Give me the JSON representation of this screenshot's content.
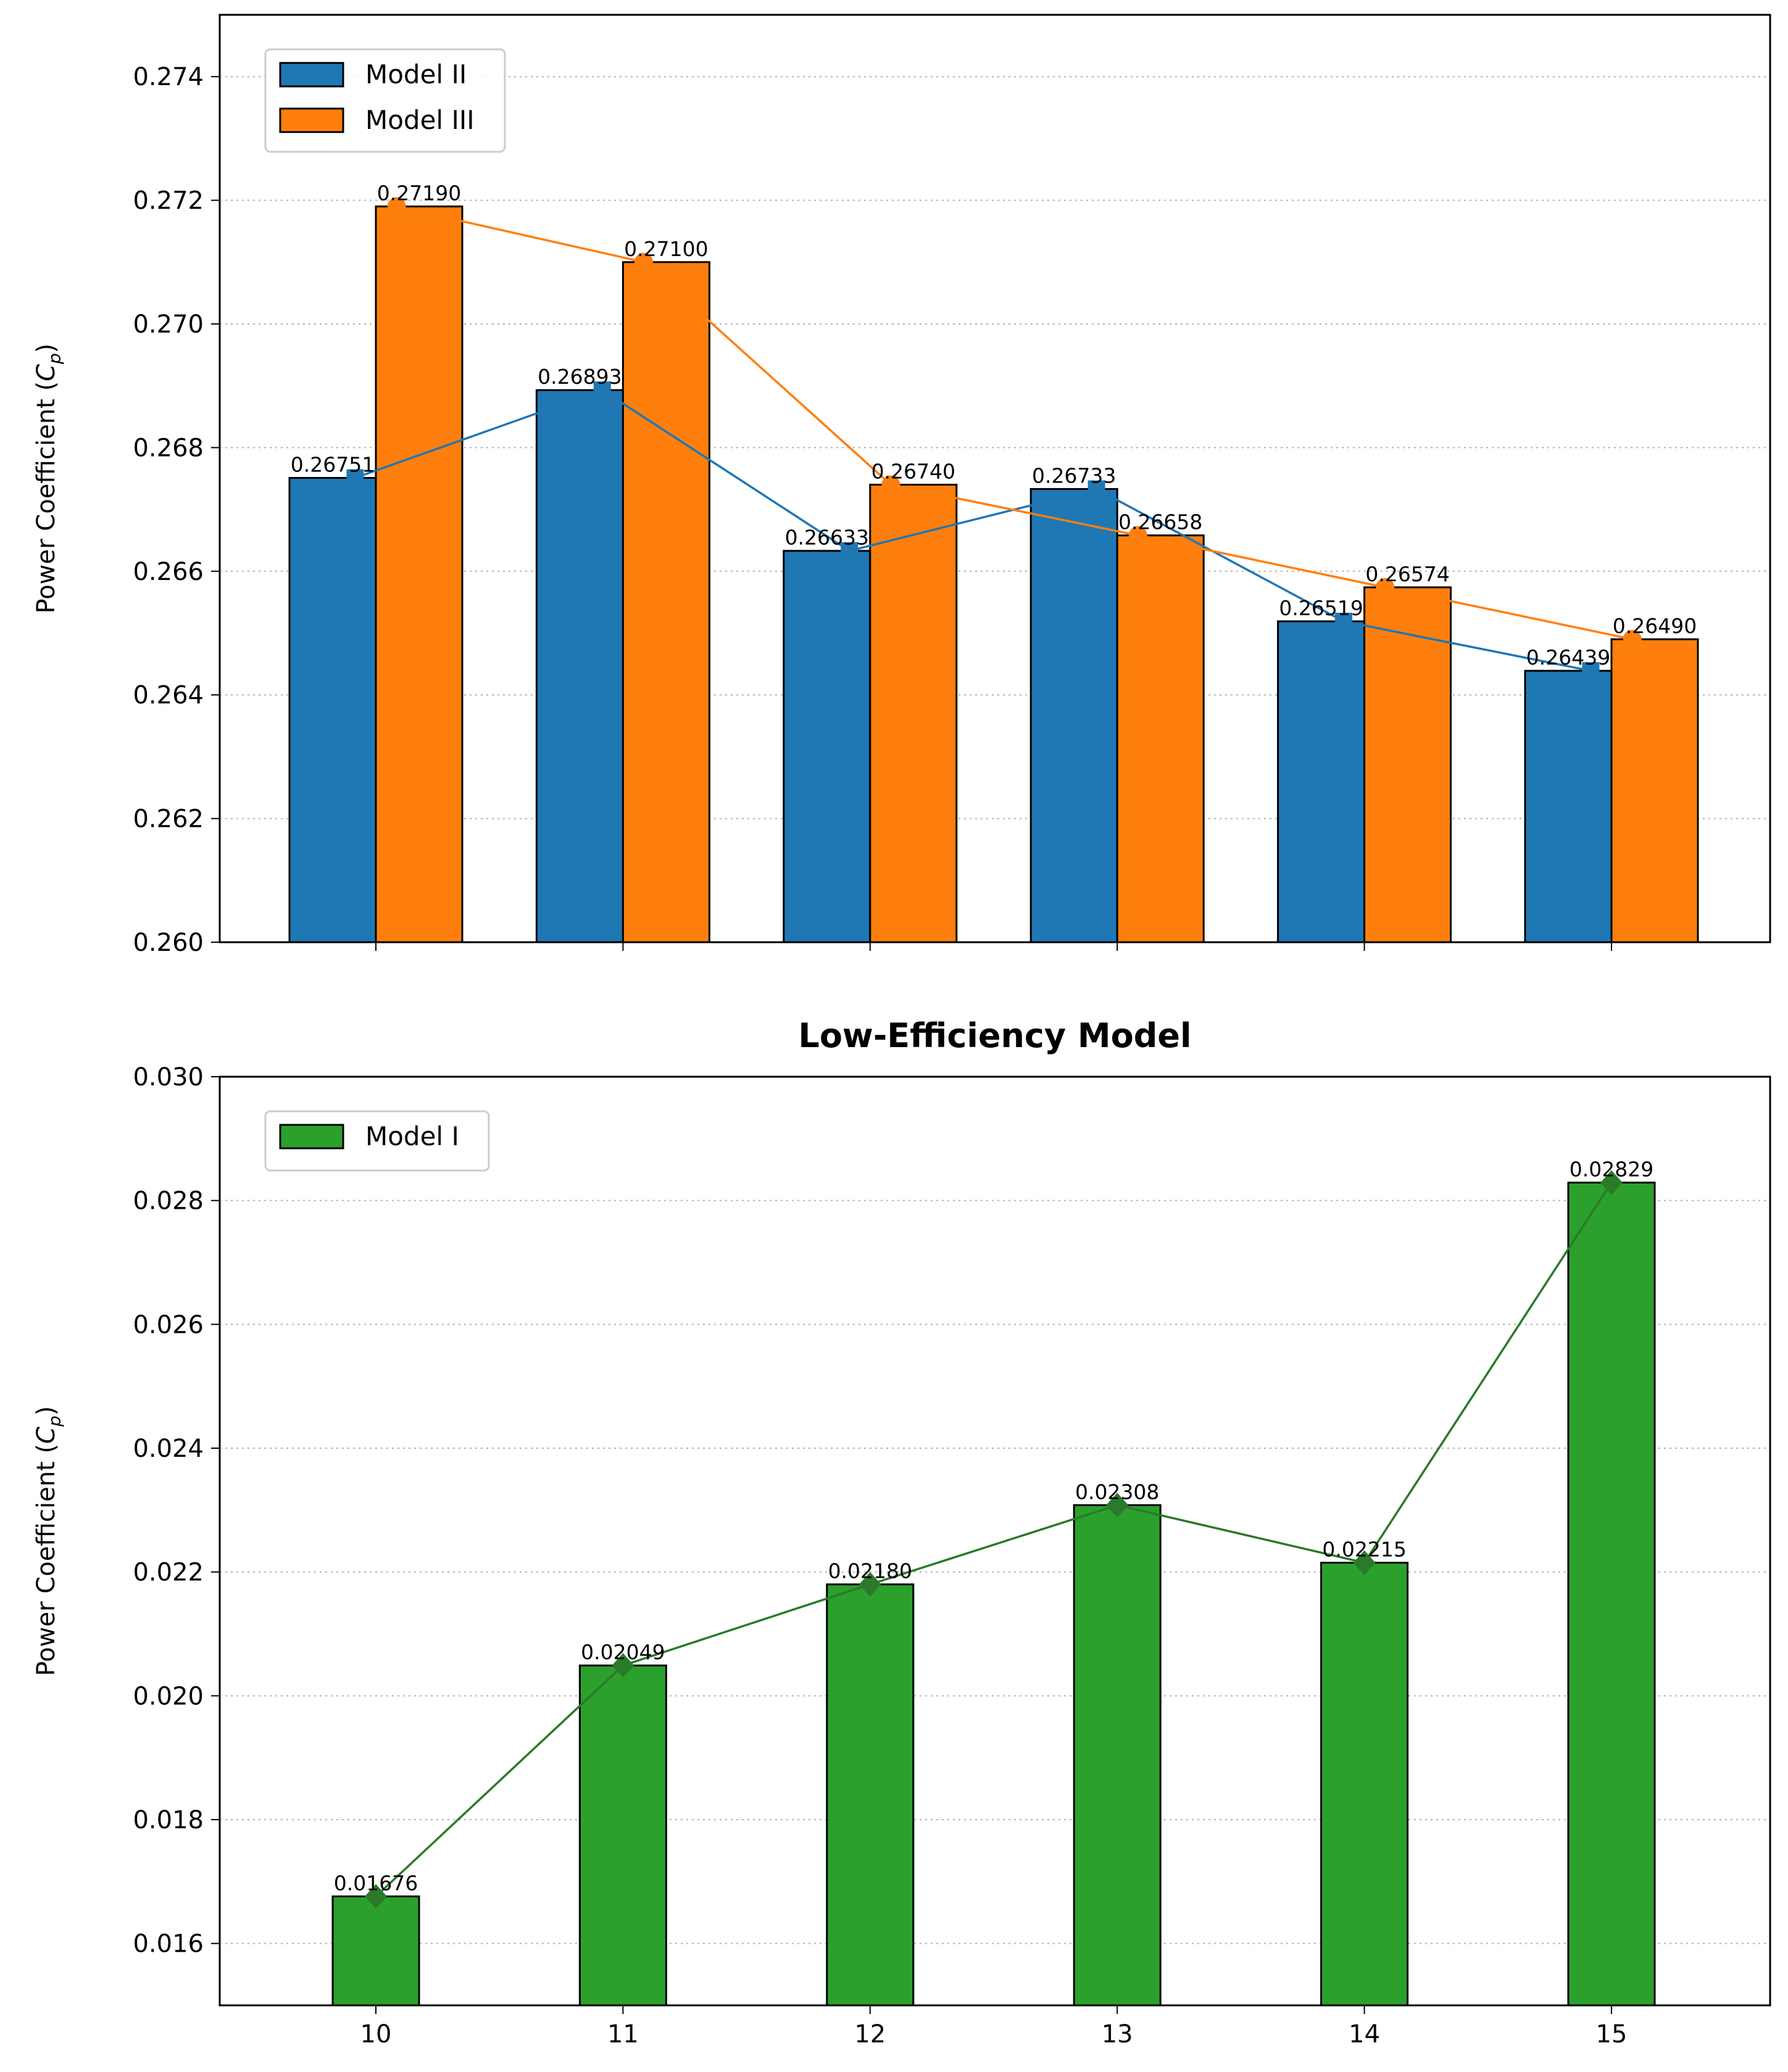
{
  "chart_data": [
    {
      "type": "bar",
      "title": "",
      "xlabel": "",
      "ylabel": "Power Coefficient (",
      "ylabel_symbol": "C",
      "ylabel_sub": "p",
      "ylabel_close": ")",
      "categories": [
        "10",
        "11",
        "12",
        "13",
        "14",
        "15"
      ],
      "ylim": [
        0.26,
        0.275
      ],
      "yticks": [
        "0.260",
        "0.262",
        "0.264",
        "0.266",
        "0.268",
        "0.270",
        "0.272",
        "0.274"
      ],
      "grid": "y-dotted",
      "legend": "top-left",
      "series": [
        {
          "name": "Model II",
          "color": "#1f77b4",
          "line_color": "#1f77b4",
          "marker": "square",
          "values": [
            0.26751,
            0.26893,
            0.26633,
            0.26733,
            0.26519,
            0.26439
          ],
          "labels": [
            "0.26751",
            "0.26893",
            "0.26633",
            "0.26733",
            "0.26519",
            "0.26439"
          ]
        },
        {
          "name": "Model III",
          "color": "#ff7f0e",
          "line_color": "#ff7f0e",
          "marker": "circle",
          "values": [
            0.2719,
            0.271,
            0.2674,
            0.26658,
            0.26574,
            0.2649
          ],
          "labels": [
            "0.27190",
            "0.27100",
            "0.26740",
            "0.26658",
            "0.26574",
            "0.26490"
          ]
        }
      ]
    },
    {
      "type": "bar",
      "title": "Low-Efficiency Model",
      "xlabel": "",
      "ylabel": "Power Coefficient (",
      "ylabel_symbol": "C",
      "ylabel_sub": "p",
      "ylabel_close": ")",
      "categories": [
        "10",
        "11",
        "12",
        "13",
        "14",
        "15"
      ],
      "ylim": [
        0.015,
        0.03
      ],
      "yticks": [
        "0.016",
        "0.018",
        "0.020",
        "0.022",
        "0.024",
        "0.026",
        "0.028",
        "0.030"
      ],
      "grid": "y-dotted",
      "legend": "top-left",
      "series": [
        {
          "name": "Model I",
          "color": "#2ca02c",
          "line_color": "#2a7a2a",
          "marker": "diamond",
          "values": [
            0.01676,
            0.02049,
            0.0218,
            0.02308,
            0.02215,
            0.02829
          ],
          "labels": [
            "0.01676",
            "0.02049",
            "0.02180",
            "0.02308",
            "0.02215",
            "0.02829"
          ]
        }
      ]
    }
  ]
}
